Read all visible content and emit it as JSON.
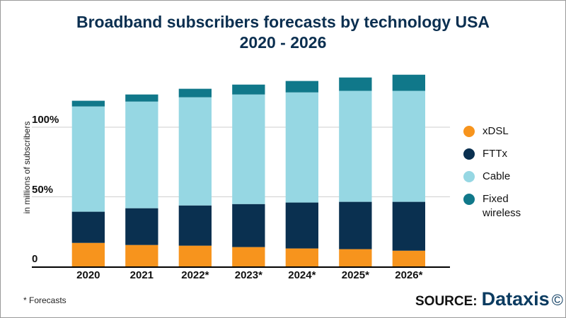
{
  "title_line1": "Broadband subscribers forecasts by technology USA",
  "title_line2": "2020 - 2026",
  "footnote": "* Forecasts",
  "source_label": "SOURCE:",
  "source_brand": "Dataxis",
  "source_symbol": "©",
  "chart_data": {
    "type": "bar",
    "stacked": true,
    "title": "Broadband subscribers forecasts by technology USA 2020 - 2026",
    "ylabel": "in millions of subscribers",
    "xlabel": "",
    "ylim": [
      0,
      140
    ],
    "grid": true,
    "legend_position": "right",
    "yticks": [
      {
        "value": 0,
        "label": "0"
      },
      {
        "value": 50,
        "label": "50%"
      },
      {
        "value": 100,
        "label": "100%"
      }
    ],
    "categories": [
      "2020",
      "2021",
      "2022*",
      "2023*",
      "2024*",
      "2025*",
      "2026*"
    ],
    "series": [
      {
        "name": "xDSL",
        "color": "#f7941d",
        "values": [
          16.9,
          15.4,
          14.9,
          13.9,
          12.9,
          12.4,
          11.3
        ]
      },
      {
        "name": "FTTx",
        "color": "#0a3050",
        "values": [
          22.4,
          26.4,
          28.9,
          30.9,
          33.0,
          34.0,
          35.1
        ]
      },
      {
        "name": "Cable",
        "color": "#96d7e3",
        "values": [
          75.6,
          76.6,
          77.7,
          78.7,
          79.1,
          79.7,
          79.7
        ]
      },
      {
        "name": "Fixed wireless",
        "color": "#10788a",
        "values": [
          4.1,
          5.1,
          6.1,
          7.1,
          8.2,
          9.6,
          11.6
        ]
      }
    ]
  }
}
